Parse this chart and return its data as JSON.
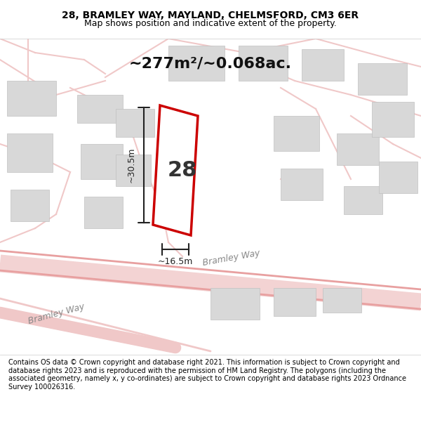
{
  "title_line1": "28, BRAMLEY WAY, MAYLAND, CHELMSFORD, CM3 6ER",
  "title_line2": "Map shows position and indicative extent of the property.",
  "area_text": "~277m²/~0.068ac.",
  "property_number": "28",
  "dim_height": "~30.5m",
  "dim_width": "~16.5m",
  "footer_text": "Contains OS data © Crown copyright and database right 2021. This information is subject to Crown copyright and database rights 2023 and is reproduced with the permission of HM Land Registry. The polygons (including the associated geometry, namely x, y co-ordinates) are subject to Crown copyright and database rights 2023 Ordnance Survey 100026316.",
  "bg_color": "#ffffff",
  "map_bg": "#f5f0f0",
  "road_color": "#f0c8c8",
  "building_color": "#d8d8d8",
  "building_edge": "#c0c0c0",
  "plot_edge_color": "#cc0000",
  "plot_fill": "#ffffff",
  "dim_line_color": "#222222",
  "road_label_color": "#888888",
  "header_bg": "#ffffff",
  "footer_bg": "#ffffff"
}
